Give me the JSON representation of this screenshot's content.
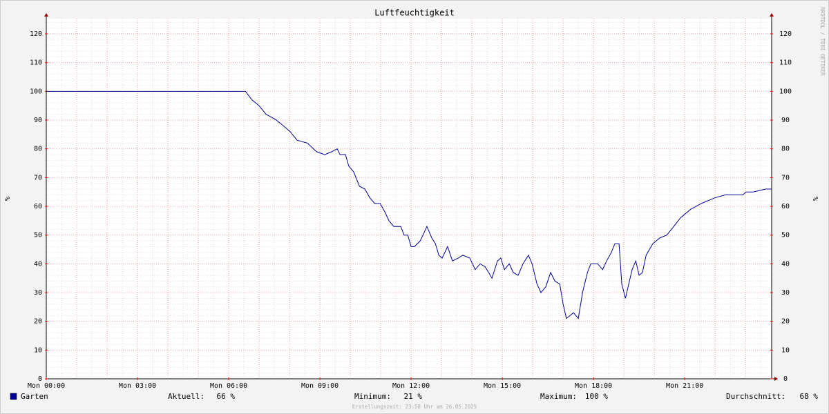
{
  "chart_data": {
    "type": "line",
    "title": "Luftfeuchtigkeit",
    "y_label": "%",
    "y2_label": "%",
    "watermark": "RRDTOOL / TOBI OETIKER",
    "x": [
      0,
      6.55,
      6.77,
      7.0,
      7.23,
      7.41,
      7.57,
      7.8,
      8.02,
      8.25,
      8.59,
      8.89,
      9.16,
      9.39,
      9.57,
      9.66,
      9.84,
      9.95,
      10.11,
      10.3,
      10.48,
      10.64,
      10.8,
      10.98,
      11.14,
      11.27,
      11.43,
      11.66,
      11.77,
      11.89,
      12.0,
      12.11,
      12.3,
      12.39,
      12.52,
      12.68,
      12.8,
      12.91,
      13.02,
      13.2,
      13.36,
      13.55,
      13.7,
      13.93,
      14.11,
      14.27,
      14.43,
      14.55,
      14.66,
      14.84,
      14.95,
      15.07,
      15.23,
      15.36,
      15.52,
      15.68,
      15.86,
      15.98,
      16.14,
      16.27,
      16.43,
      16.59,
      16.73,
      16.89,
      17.0,
      17.11,
      17.34,
      17.5,
      17.64,
      17.8,
      17.91,
      18.14,
      18.3,
      18.43,
      18.59,
      18.7,
      18.84,
      18.93,
      19.05,
      19.16,
      19.27,
      19.39,
      19.5,
      19.61,
      19.73,
      19.95,
      20.18,
      20.41,
      20.64,
      20.86,
      21.2,
      21.55,
      22.0,
      22.34,
      22.91,
      23.02,
      23.25,
      23.66,
      23.86
    ],
    "series": [
      {
        "name": "Garten",
        "color": "#000099",
        "values": [
          100,
          100,
          97,
          95,
          92,
          91,
          90,
          88,
          86,
          83,
          82,
          79,
          78,
          79,
          80,
          78,
          78,
          74,
          72,
          67,
          66,
          63,
          61,
          61,
          58,
          55,
          53,
          53,
          50,
          50,
          46,
          46,
          48,
          50,
          53,
          49,
          47,
          43,
          42,
          46,
          41,
          42,
          43,
          42,
          38,
          40,
          39,
          37,
          35,
          41,
          42,
          38,
          40,
          37,
          36,
          40,
          43,
          40,
          33,
          30,
          32,
          37,
          34,
          33,
          26,
          21,
          23,
          21,
          30,
          37,
          40,
          40,
          38,
          41,
          44,
          47,
          47,
          33,
          28,
          33,
          38,
          41,
          36,
          37,
          43,
          47,
          49,
          50,
          53,
          56,
          59,
          61,
          63,
          64,
          64,
          65,
          65,
          66,
          66
        ]
      }
    ],
    "xlim": [
      0,
      23.86
    ],
    "xticks": [
      {
        "value": 0,
        "label": "Mon 00:00"
      },
      {
        "value": 3,
        "label": "Mon 03:00"
      },
      {
        "value": 6,
        "label": "Mon 06:00"
      },
      {
        "value": 9,
        "label": "Mon 09:00"
      },
      {
        "value": 12,
        "label": "Mon 12:00"
      },
      {
        "value": 15,
        "label": "Mon 15:00"
      },
      {
        "value": 18,
        "label": "Mon 18:00"
      },
      {
        "value": 21,
        "label": "Mon 21:00"
      }
    ],
    "ylim": [
      0,
      125.3
    ],
    "yticks": [
      0,
      10,
      20,
      30,
      40,
      50,
      60,
      70,
      80,
      90,
      100,
      110,
      120
    ],
    "y2lim": [
      0,
      125.3
    ],
    "y2ticks": [
      0,
      10,
      20,
      30,
      40,
      50,
      60,
      70,
      80,
      90,
      100,
      110,
      120
    ],
    "grid": true,
    "stats": [
      {
        "label": "Aktuell:",
        "value": "66 %"
      },
      {
        "label": "Minimum:",
        "value": "21 %"
      },
      {
        "label": "Maximum:",
        "value": "100 %"
      },
      {
        "label": "Durchschnitt:",
        "value": "68 %"
      }
    ],
    "footer": "Erstellungszeit: 23:58 Uhr am 26.05.2025"
  }
}
